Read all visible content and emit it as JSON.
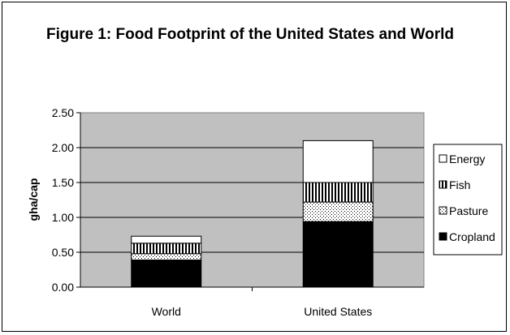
{
  "chart_data": {
    "type": "bar",
    "stacked": true,
    "title": "Figure 1: Food Footprint of the United States and World",
    "xlabel": "",
    "ylabel": "gha/cap",
    "ylim": [
      0,
      2.5
    ],
    "yticks": [
      "0.00",
      "0.50",
      "1.00",
      "1.50",
      "2.00",
      "2.50"
    ],
    "categories": [
      "World",
      "United States"
    ],
    "series": [
      {
        "name": "Cropland",
        "values": [
          0.39,
          0.94
        ],
        "pattern": "solid-black"
      },
      {
        "name": "Pasture",
        "values": [
          0.09,
          0.28
        ],
        "pattern": "dotted"
      },
      {
        "name": "Fish",
        "values": [
          0.15,
          0.28
        ],
        "pattern": "vertical-stripes"
      },
      {
        "name": "Energy",
        "values": [
          0.1,
          0.6
        ],
        "pattern": "white"
      }
    ],
    "legend": {
      "position": "right",
      "order": [
        "Energy",
        "Fish",
        "Pasture",
        "Cropland"
      ]
    },
    "grid": true,
    "plot_background": "#c0c0c0"
  }
}
